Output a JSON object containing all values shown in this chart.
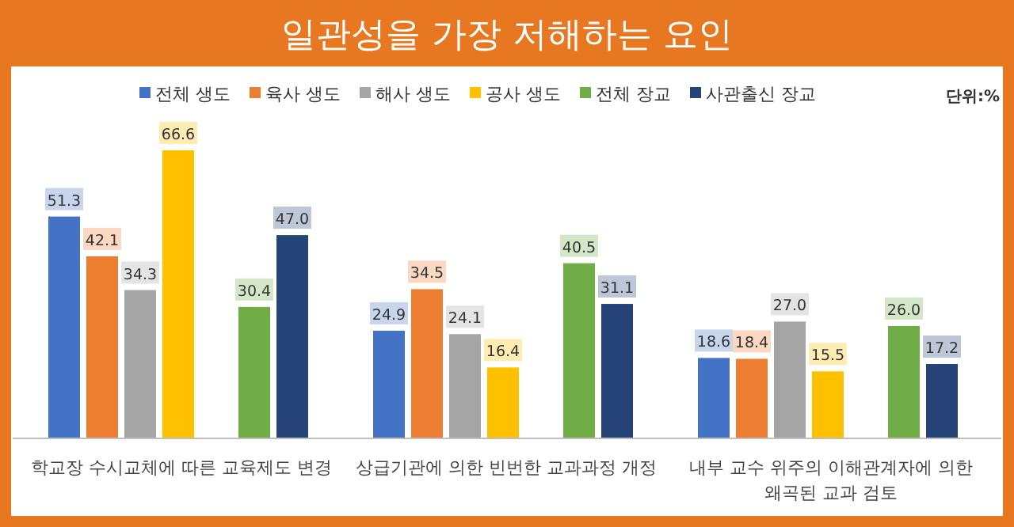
{
  "chart_data": {
    "type": "bar",
    "title": "일관성을 가장 저해하는 요인",
    "categories": [
      "학교장 수시교체에 따른 교육제도 변경",
      "상급기관에 의한 빈번한 교과과정 개정",
      "내부 교수 위주의 이해관계자에 의한 왜곡된 교과 검토"
    ],
    "series": [
      {
        "name": "전체 생도",
        "color": "#4472c4",
        "values": [
          51.3,
          24.9,
          18.6
        ],
        "value_labels": [
          "51.3",
          "24.9",
          "18.6"
        ]
      },
      {
        "name": "육사 생도",
        "color": "#ed7d31",
        "values": [
          42.1,
          34.5,
          18.4
        ],
        "value_labels": [
          "42.1",
          "34.5",
          "18.4"
        ]
      },
      {
        "name": "해사 생도",
        "color": "#a5a5a5",
        "values": [
          34.3,
          24.1,
          27.0
        ],
        "value_labels": [
          "34.3",
          "24.1",
          "27.0"
        ]
      },
      {
        "name": "공사 생도",
        "color": "#ffc000",
        "values": [
          66.6,
          16.4,
          15.5
        ],
        "value_labels": [
          "66.6",
          "16.4",
          "15.5"
        ]
      },
      {
        "name": "전체 장교",
        "color": "#70ad47",
        "values": [
          30.4,
          40.5,
          26.0
        ],
        "value_labels": [
          "30.4",
          "40.5",
          "26.0"
        ]
      },
      {
        "name": "사관출신 장교",
        "color": "#264478",
        "values": [
          47.0,
          31.1,
          17.2
        ],
        "value_labels": [
          "47.0",
          "31.1",
          "17.2"
        ]
      }
    ],
    "legend": "top",
    "annotations": [
      "단위:%"
    ]
  }
}
